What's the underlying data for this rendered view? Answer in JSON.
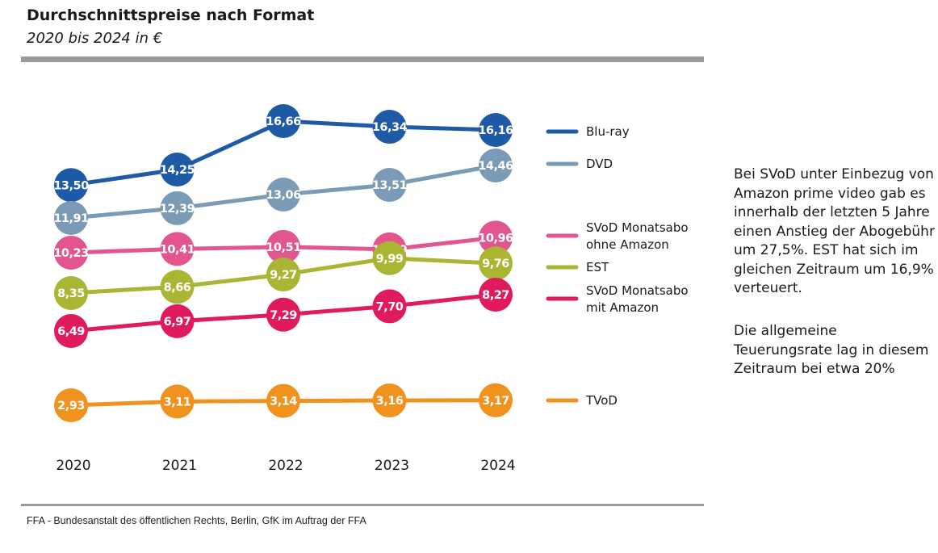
{
  "header": {
    "title": "Durchschnittspreise nach Format",
    "subtitle": "2020 bis 2024 in €"
  },
  "source": "FFA - Bundesanstalt des öffentlichen Rechts, Berlin, GfK im Auftrag der FFA",
  "side_note": {
    "paragraph_1": "Bei SVoD unter Einbezug von Amazon prime video gab es innerhalb der letzten 5 Jahre einen Anstieg der Abogebühr um 27,5%. EST hat sich im gleichen Zeitraum um 16,9% verteuert.",
    "paragraph_2": "Die allgemeine Teuerungsrate lag in diesem Zeitraum bei etwa 20%"
  },
  "chart_data": {
    "type": "line",
    "title": "Durchschnittspreise nach Format",
    "subtitle": "2020 bis 2024 in €",
    "xlabel": "",
    "ylabel": "",
    "x": [
      "2020",
      "2021",
      "2022",
      "2023",
      "2024"
    ],
    "series": [
      {
        "name": "Blu-ray",
        "color": "#1f5aa6",
        "values": [
          13.5,
          14.25,
          16.66,
          16.34,
          16.16
        ],
        "labels": [
          "13,50",
          "14,25",
          "16,66",
          "16,34",
          "16,16"
        ]
      },
      {
        "name": "DVD",
        "color": "#7a9ab5",
        "values": [
          11.91,
          12.39,
          13.06,
          13.51,
          14.46
        ],
        "labels": [
          "11,91",
          "12,39",
          "13,06",
          "13,51",
          "14,46"
        ]
      },
      {
        "name": "SVoD Monatsabo ohne Amazon",
        "color": "#e2558f",
        "values": [
          10.23,
          10.41,
          10.51,
          10.39,
          10.96
        ],
        "labels": [
          "10,23",
          "10,41",
          "10,51",
          "10,39",
          "10,96"
        ]
      },
      {
        "name": "EST",
        "color": "#a9b533",
        "values": [
          8.35,
          8.66,
          9.27,
          9.99,
          9.76
        ],
        "labels": [
          "8,35",
          "8,66",
          "9,27",
          "9,99",
          "9,76"
        ]
      },
      {
        "name": "SVoD Monatsabo mit Amazon",
        "color": "#e01a5e",
        "values": [
          6.49,
          6.97,
          7.29,
          7.7,
          8.27
        ],
        "labels": [
          "6,49",
          "6,97",
          "7,29",
          "7,70",
          "8,27"
        ]
      },
      {
        "name": "TVoD",
        "color": "#f0921e",
        "values": [
          2.93,
          3.11,
          3.14,
          3.16,
          3.17
        ],
        "labels": [
          "2,93",
          "3,11",
          "3,14",
          "3,16",
          "3,17"
        ]
      }
    ],
    "legend": [
      {
        "lines": [
          "Blu-ray"
        ],
        "color": "#1f5aa6"
      },
      {
        "lines": [
          "DVD"
        ],
        "color": "#7a9ab5"
      },
      {
        "lines": [
          "SVoD Monatsabo",
          "ohne Amazon"
        ],
        "color": "#e2558f"
      },
      {
        "lines": [
          "EST"
        ],
        "color": "#a9b533"
      },
      {
        "lines": [
          "SVoD Monatsabo",
          "mit Amazon"
        ],
        "color": "#e01a5e"
      },
      {
        "lines": [
          "TVoD"
        ],
        "color": "#f0921e"
      }
    ],
    "legend_position": "right",
    "grid": false
  }
}
